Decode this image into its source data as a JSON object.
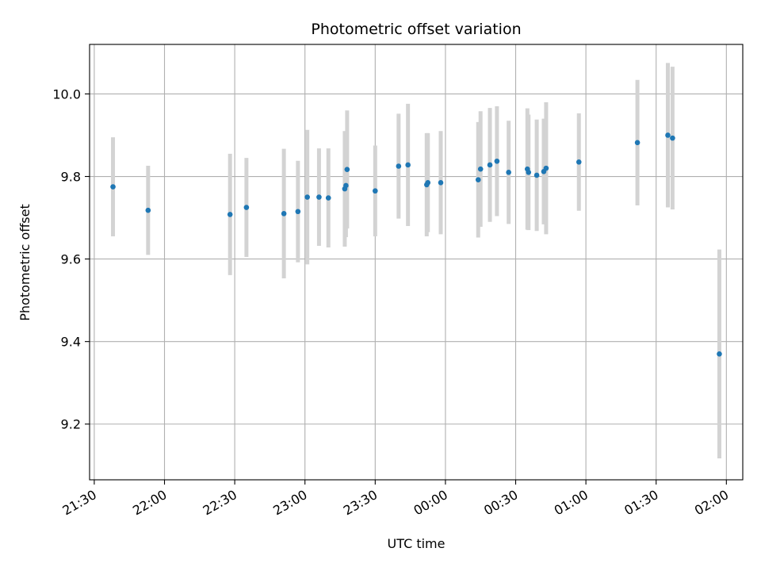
{
  "chart_data": {
    "type": "scatter",
    "title": "Photometric offset variation",
    "xlabel": "UTC time",
    "ylabel": "Photometric offset",
    "grid": true,
    "xlim": [
      "21:28",
      "02:07"
    ],
    "ylim": [
      9.065,
      10.12
    ],
    "x_ticks": [
      "21:30",
      "22:00",
      "22:30",
      "23:00",
      "23:30",
      "00:00",
      "00:30",
      "01:00",
      "01:30",
      "02:00"
    ],
    "y_ticks": [
      9.2,
      9.4,
      9.6,
      9.8,
      10.0
    ],
    "y_tick_labels": [
      "9.2",
      "9.4",
      "9.6",
      "9.8",
      "10.0"
    ],
    "colors": {
      "points": "#1f77b4",
      "errorbars": "#d3d3d3",
      "grid": "#b0b0b0"
    },
    "points": [
      {
        "x": "21:38",
        "y": 9.775,
        "err": 0.12
      },
      {
        "x": "21:53",
        "y": 9.718,
        "err": 0.108
      },
      {
        "x": "22:28",
        "y": 9.708,
        "err": 0.147
      },
      {
        "x": "22:35",
        "y": 9.725,
        "err": 0.12
      },
      {
        "x": "22:51",
        "y": 9.71,
        "err": 0.157
      },
      {
        "x": "22:57",
        "y": 9.715,
        "err": 0.123
      },
      {
        "x": "23:01",
        "y": 9.75,
        "err": 0.163
      },
      {
        "x": "23:06",
        "y": 9.75,
        "err": 0.118
      },
      {
        "x": "23:10",
        "y": 9.748,
        "err": 0.12
      },
      {
        "x": "23:17",
        "y": 9.77,
        "err": 0.14
      },
      {
        "x": "23:17.5",
        "y": 9.778,
        "err": 0.125
      },
      {
        "x": "23:18",
        "y": 9.817,
        "err": 0.143
      },
      {
        "x": "23:30",
        "y": 9.765,
        "err": 0.11
      },
      {
        "x": "23:40",
        "y": 9.825,
        "err": 0.127
      },
      {
        "x": "23:44",
        "y": 9.828,
        "err": 0.148
      },
      {
        "x": "23:52",
        "y": 9.78,
        "err": 0.125
      },
      {
        "x": "23:52.5",
        "y": 9.785,
        "err": 0.12
      },
      {
        "x": "23:58",
        "y": 9.785,
        "err": 0.125
      },
      {
        "x": "00:14",
        "y": 9.792,
        "err": 0.14
      },
      {
        "x": "00:15",
        "y": 9.818,
        "err": 0.14
      },
      {
        "x": "00:19",
        "y": 9.828,
        "err": 0.138
      },
      {
        "x": "00:22",
        "y": 9.837,
        "err": 0.133
      },
      {
        "x": "00:27",
        "y": 9.81,
        "err": 0.125
      },
      {
        "x": "00:35",
        "y": 9.818,
        "err": 0.147
      },
      {
        "x": "00:35.5",
        "y": 9.81,
        "err": 0.14
      },
      {
        "x": "00:39",
        "y": 9.803,
        "err": 0.135
      },
      {
        "x": "00:42",
        "y": 9.812,
        "err": 0.128
      },
      {
        "x": "00:43",
        "y": 9.82,
        "err": 0.16
      },
      {
        "x": "00:57",
        "y": 9.835,
        "err": 0.118
      },
      {
        "x": "01:22",
        "y": 9.882,
        "err": 0.152
      },
      {
        "x": "01:35",
        "y": 9.9,
        "err": 0.175
      },
      {
        "x": "01:37",
        "y": 9.893,
        "err": 0.173
      },
      {
        "x": "01:57",
        "y": 9.37,
        "err": 0.253
      }
    ]
  }
}
